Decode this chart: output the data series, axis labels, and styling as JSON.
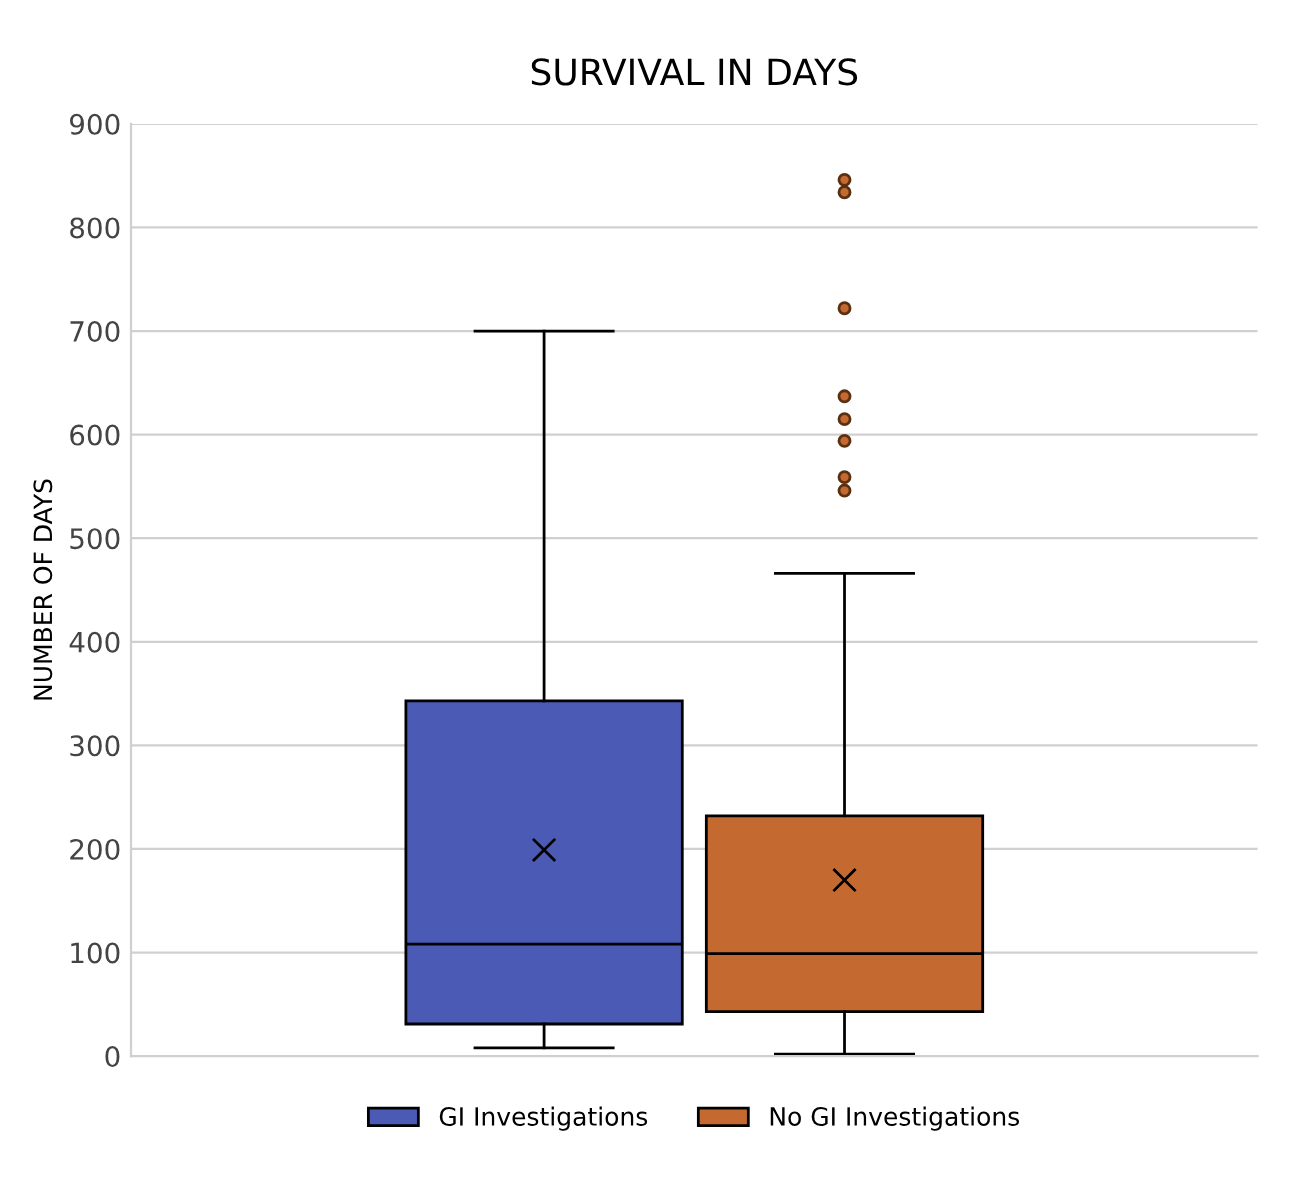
{
  "chart_data": {
    "type": "box",
    "title": "SURVIVAL IN DAYS",
    "ylabel": "NUMBER OF DAYS",
    "categories": [
      null
    ],
    "series": [
      {
        "name": "GI Investigations",
        "color": "#4a5ab5",
        "boxes": [
          {
            "low": 8,
            "q1": 31,
            "median": 108,
            "q3": 343,
            "high": 700,
            "mean": 199
          }
        ]
      },
      {
        "name": "No GI Investigations",
        "color": "#c46a30",
        "boxes": [
          {
            "low": 2,
            "q1": 43,
            "median": 99,
            "q3": 232,
            "high": 466,
            "mean": 170,
            "outliers": [
              846,
              834,
              722,
              637,
              615,
              594,
              559,
              546
            ]
          }
        ]
      }
    ],
    "ylim": [
      0,
      900
    ],
    "yticks": [
      0,
      100,
      200,
      300,
      400,
      500,
      600,
      700,
      800,
      900
    ],
    "grid": "y",
    "legend": "bottom",
    "marker": "cross"
  }
}
